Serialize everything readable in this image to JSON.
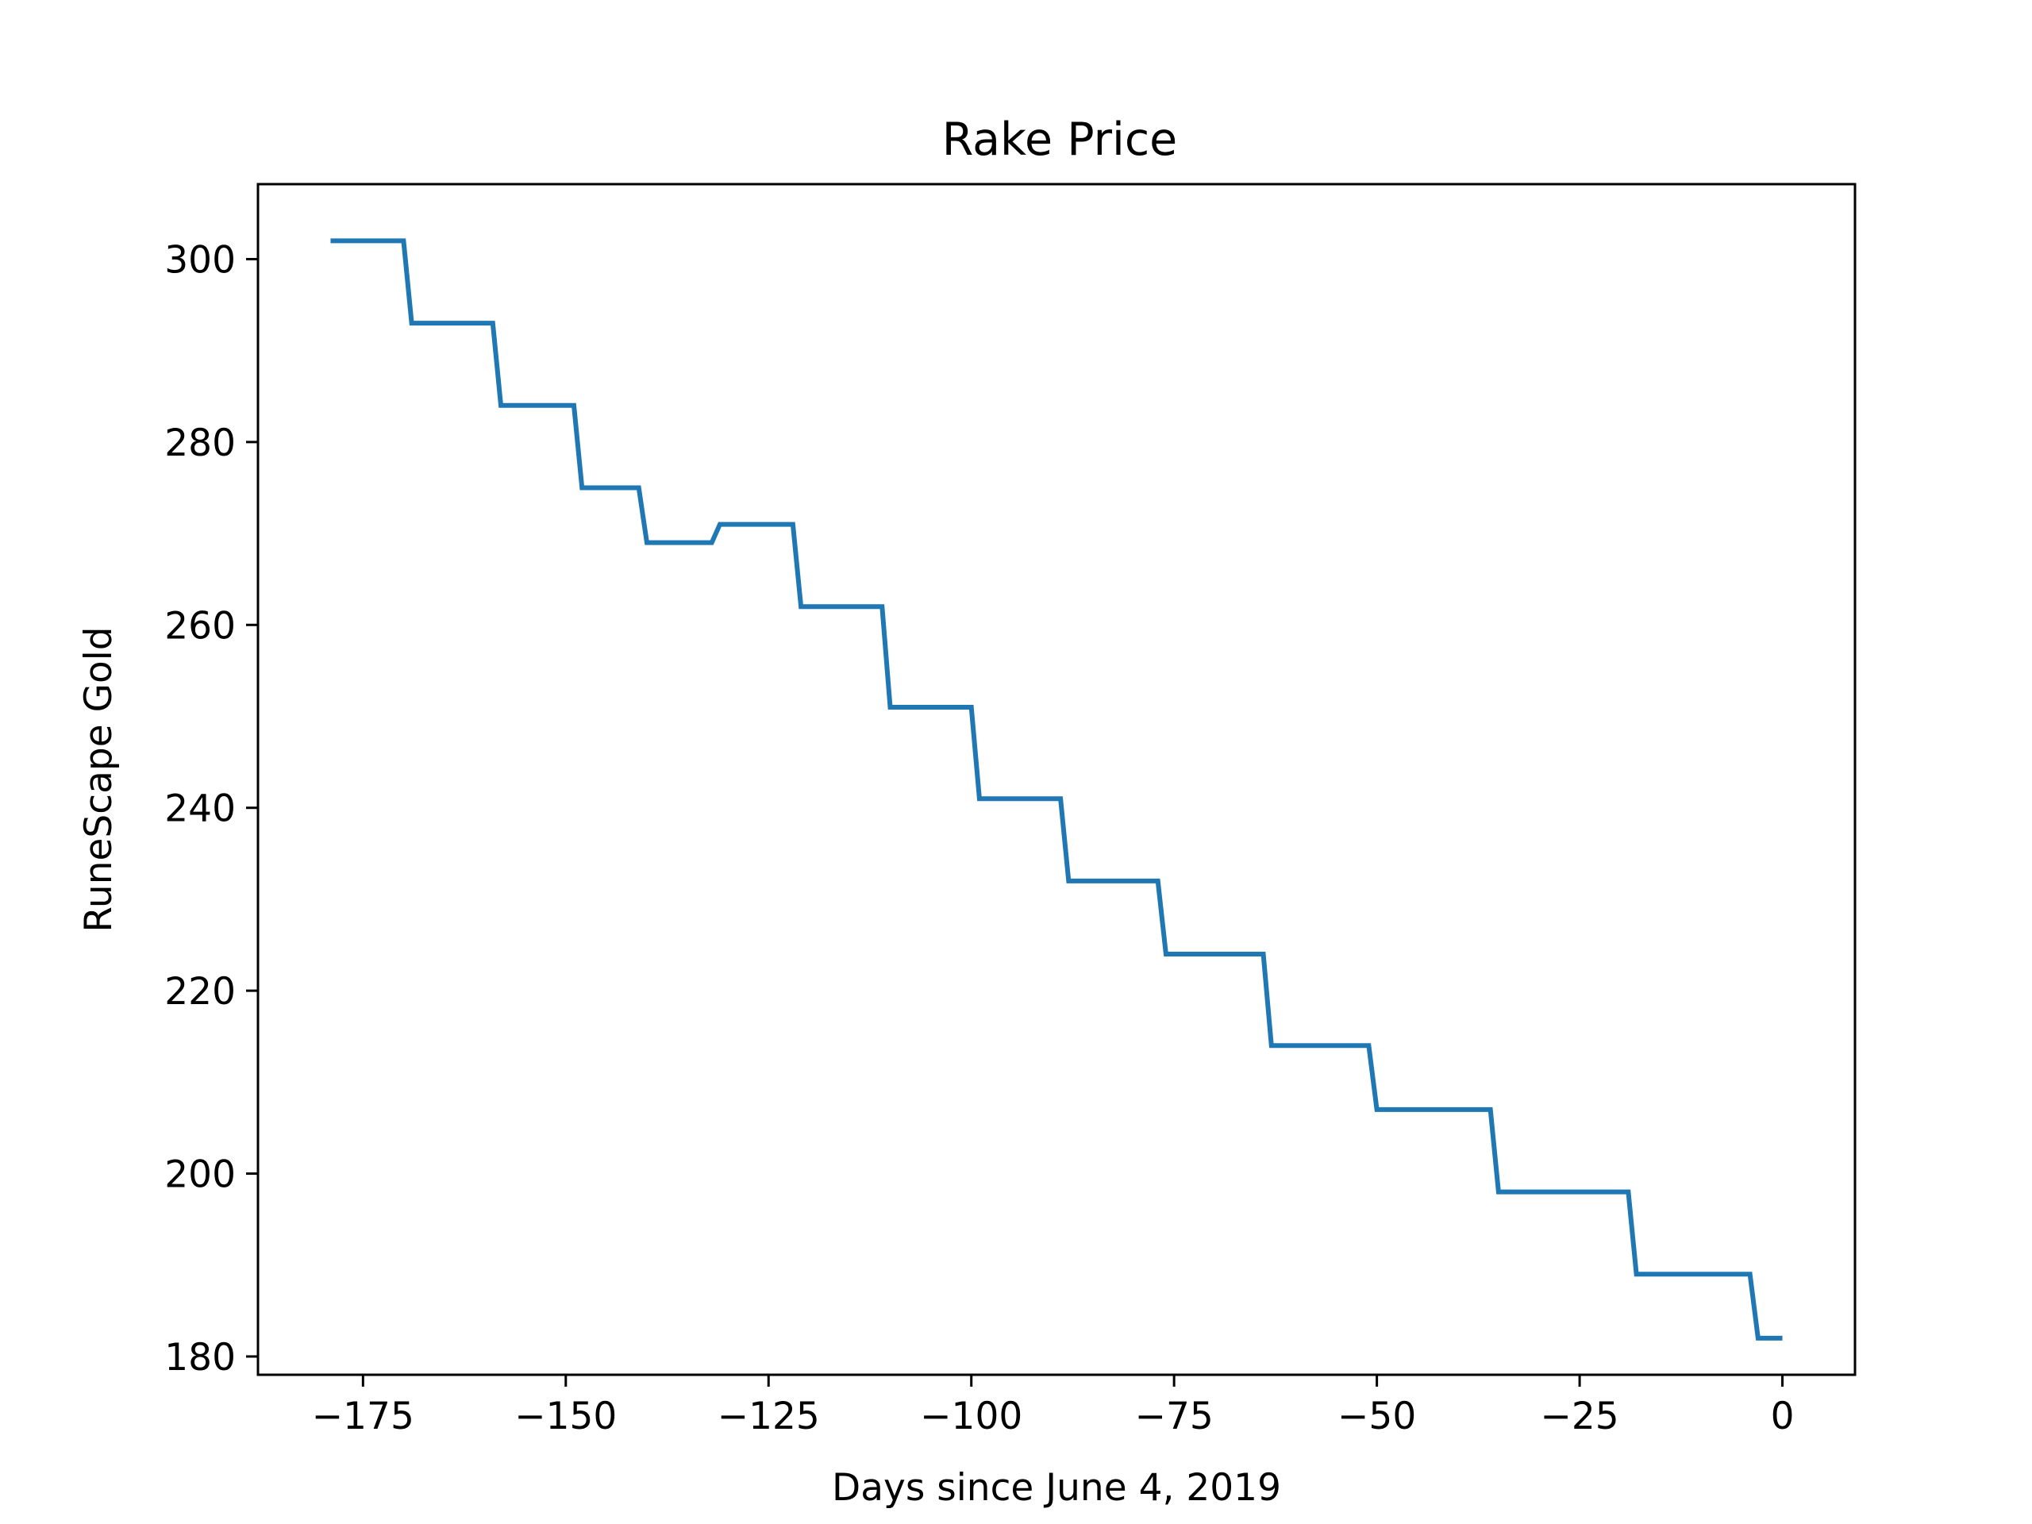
{
  "chart_data": {
    "type": "line",
    "title": "Rake Price",
    "xlabel": "Days since June 4, 2019",
    "ylabel": "RuneScape Gold",
    "xlim": [
      -187.95,
      8.95
    ],
    "ylim": [
      178.0,
      308.2
    ],
    "grid": false,
    "legend": "none",
    "x_ticks": [
      -175,
      -150,
      -125,
      -100,
      -75,
      -50,
      -25,
      0
    ],
    "x_tick_labels": [
      "−175",
      "−150",
      "−125",
      "−100",
      "−75",
      "−50",
      "−25",
      "0"
    ],
    "y_ticks": [
      180,
      200,
      220,
      240,
      260,
      280,
      300
    ],
    "y_tick_labels": [
      "180",
      "200",
      "220",
      "240",
      "260",
      "280",
      "300"
    ],
    "series": [
      {
        "color": "#1f77b4",
        "x": [
          -179,
          -170,
          -169,
          -159,
          -158,
          -149,
          -148,
          -141,
          -140,
          -132,
          -131,
          -122,
          -121,
          -111,
          -110,
          -100,
          -99,
          -89,
          -88,
          -77,
          -76,
          -64,
          -63,
          -51,
          -50,
          -36,
          -35,
          -19,
          -18,
          -4,
          -3,
          0
        ],
        "y": [
          302,
          302,
          293,
          293,
          284,
          284,
          275,
          275,
          269,
          269,
          271,
          271,
          262,
          262,
          251,
          251,
          241,
          241,
          232,
          232,
          224,
          224,
          214,
          214,
          207,
          207,
          198,
          198,
          189,
          189,
          182,
          182
        ]
      }
    ]
  }
}
